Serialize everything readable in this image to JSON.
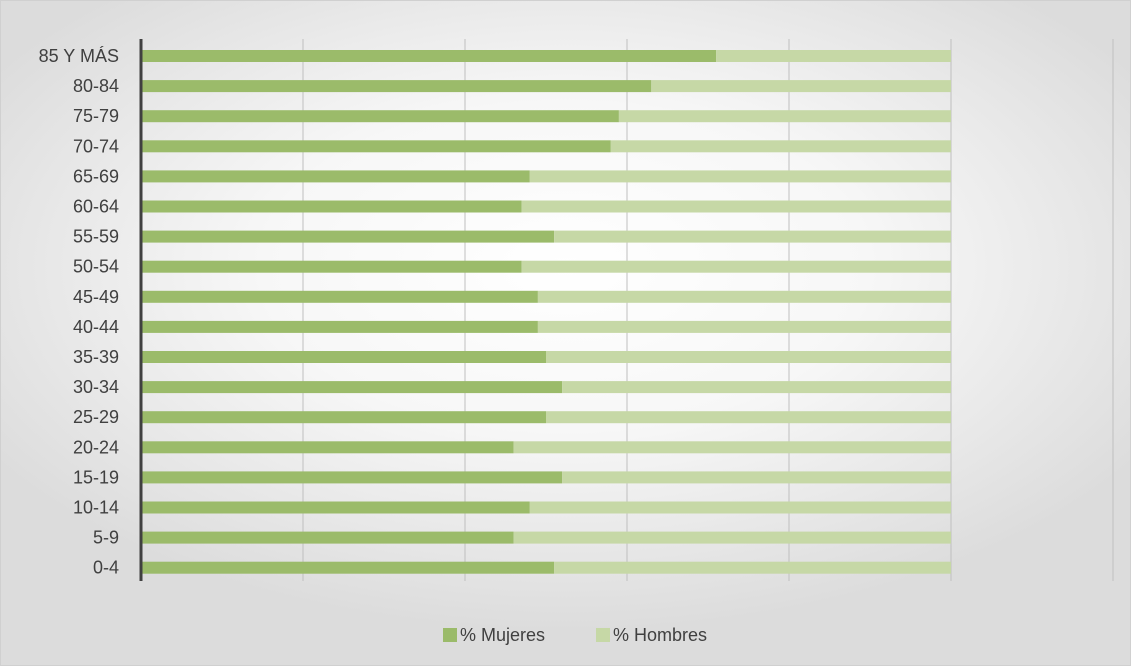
{
  "chart_data": {
    "type": "bar",
    "orientation": "horizontal",
    "stacked": "100%",
    "categories": [
      "85 Y MÁS",
      "80-84",
      "75-79",
      "70-74",
      "65-69",
      "60-64",
      "55-59",
      "50-54",
      "45-49",
      "40-44",
      "35-39",
      "30-34",
      "25-29",
      "20-24",
      "15-19",
      "10-14",
      "5-9",
      "0-4"
    ],
    "series": [
      {
        "name": "% Mujeres",
        "color": "#9bbb6a",
        "values": [
          71,
          63,
          59,
          58,
          48,
          47,
          51,
          47,
          49,
          49,
          50,
          52,
          50,
          46,
          52,
          48,
          46,
          51
        ]
      },
      {
        "name": "% Hombres",
        "color": "#c6d8a6",
        "values": [
          29,
          37,
          41,
          42,
          52,
          53,
          49,
          53,
          51,
          51,
          50,
          48,
          50,
          54,
          48,
          52,
          54,
          49
        ]
      }
    ],
    "xlim": [
      0,
      120
    ],
    "grid": true,
    "legend_position": "bottom"
  }
}
